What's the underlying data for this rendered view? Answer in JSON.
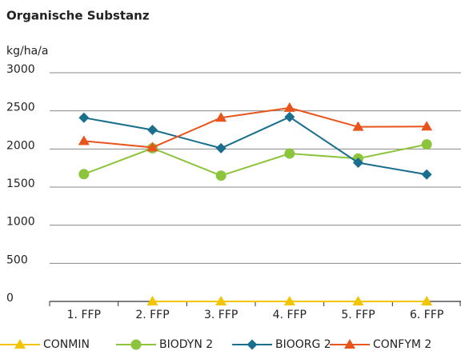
{
  "chart_data": {
    "type": "line",
    "title": "Organische Substanz",
    "y_label": "kg/ha/a",
    "categories": [
      "1. FFP",
      "2. FFP",
      "3. FFP",
      "4. FFP",
      "5. FFP",
      "6. FFP"
    ],
    "series": [
      {
        "name": "CONMIN",
        "color": "#f2c500",
        "marker": "triangle",
        "values": [
          null,
          0,
          0,
          0,
          0,
          0
        ]
      },
      {
        "name": "BIODYN 2",
        "color": "#8cc43c",
        "marker": "circle",
        "values": [
          1670,
          2010,
          1650,
          1940,
          1875,
          2060
        ]
      },
      {
        "name": "BIOORG 2",
        "color": "#1a6e8e",
        "marker": "diamond",
        "values": [
          2410,
          2250,
          2010,
          2420,
          1820,
          1665
        ]
      },
      {
        "name": "CONFYM 2",
        "color": "#e8541c",
        "marker": "triangle",
        "values": [
          2105,
          2020,
          2410,
          2540,
          2290,
          2295
        ]
      }
    ],
    "ylim": [
      0,
      3000
    ],
    "yticks": [
      0,
      500,
      1000,
      1500,
      2000,
      2500,
      3000
    ],
    "grid": true
  }
}
